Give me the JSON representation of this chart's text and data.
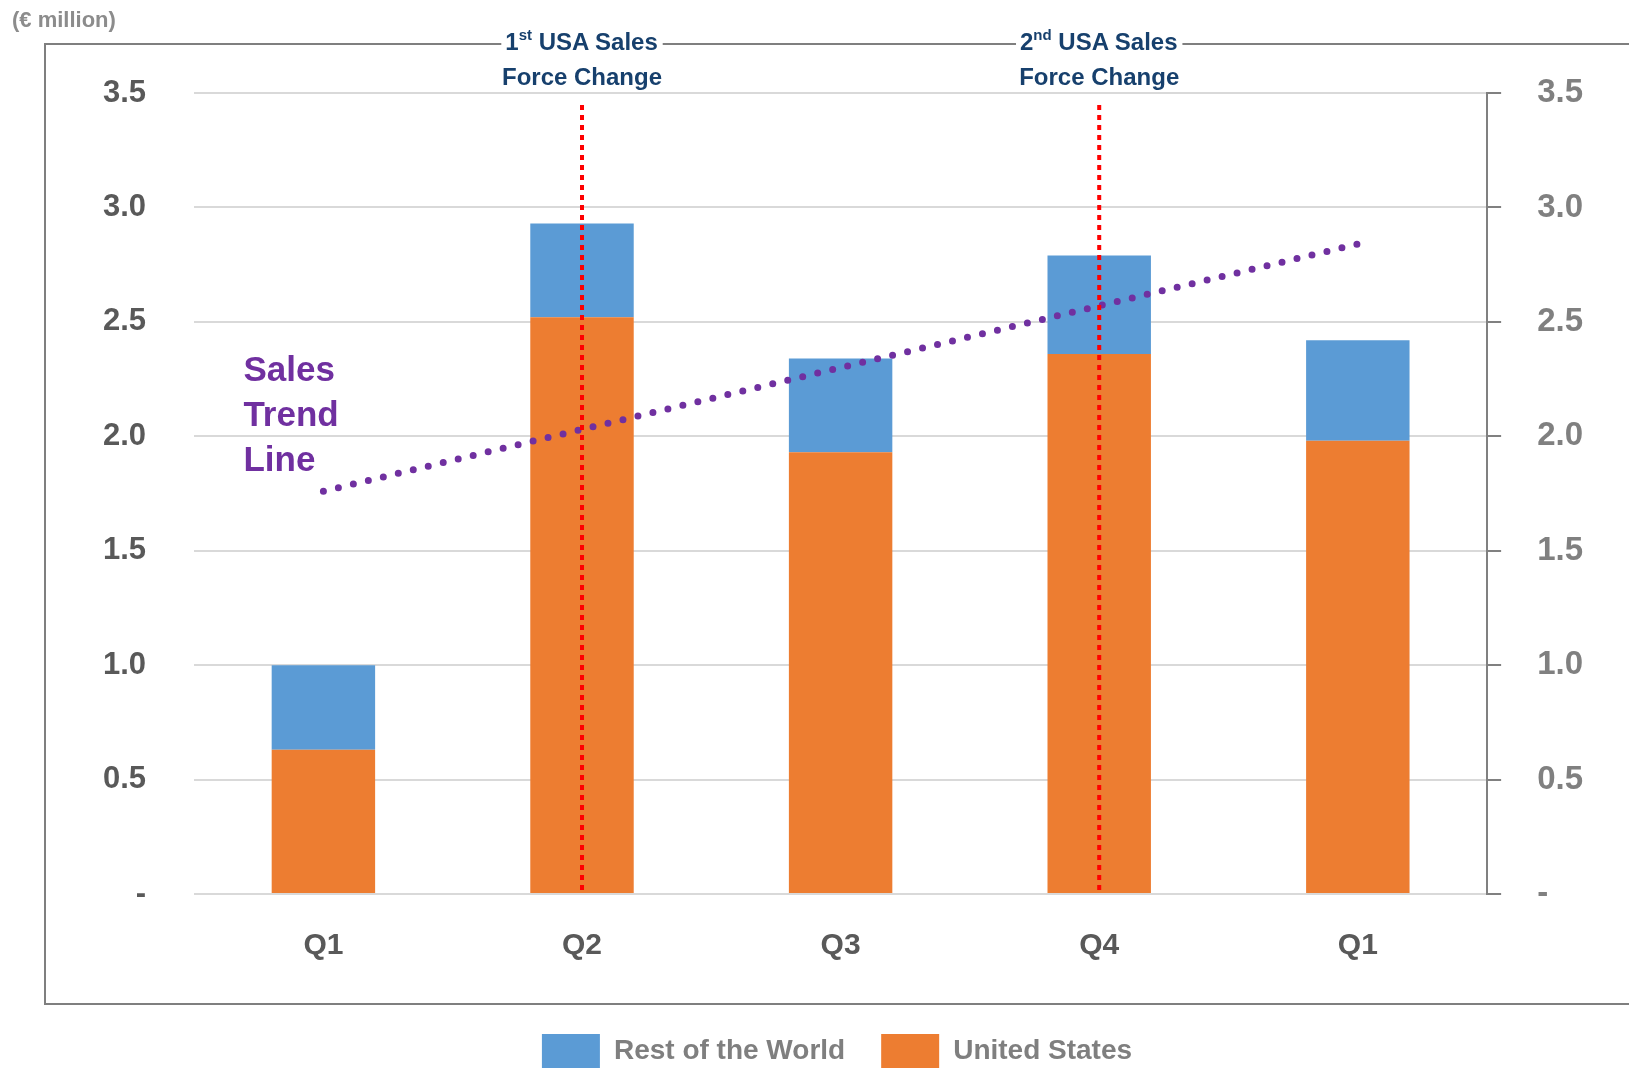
{
  "chart_data": {
    "type": "bar",
    "stacked": true,
    "categories": [
      "Q1",
      "Q2",
      "Q3",
      "Q4",
      "Q1"
    ],
    "series": [
      {
        "name": "United States",
        "color": "#ed7d31",
        "values": [
          0.63,
          2.52,
          1.93,
          2.36,
          1.98
        ]
      },
      {
        "name": "Rest of the World",
        "color": "#5b9bd5",
        "values": [
          0.37,
          0.41,
          0.41,
          0.43,
          0.44
        ]
      },
      {
        "name": "Sales Trend Line",
        "type": "line",
        "color": "#7030a0",
        "line_style": "dotted",
        "marker": "none",
        "values": [
          1.76,
          2.03,
          2.3,
          2.57,
          2.84
        ]
      }
    ],
    "ylim": [
      0,
      3.5
    ],
    "yticks": [
      {
        "value": 0,
        "label": "-"
      },
      0.5,
      {
        "value": 1,
        "label": "1.0"
      },
      1.5,
      {
        "value": 2,
        "label": "2.0"
      },
      2.5,
      {
        "value": 3,
        "label": "3.0"
      },
      3.5
    ],
    "y2lim": [
      0,
      3.5
    ],
    "y2ticks": [
      {
        "value": 0,
        "label": "-"
      },
      0.5,
      {
        "value": 1,
        "label": "1.0"
      },
      1.5,
      {
        "value": 2,
        "label": "2.0"
      },
      2.5,
      {
        "value": 3,
        "label": "3.0"
      },
      3.5
    ],
    "ref_lines": [
      {
        "axis": "x",
        "value": "Q2",
        "label": "1$^{st}$ USA Sales Force Change",
        "color": "#ff0000",
        "line_style": "dotted"
      },
      {
        "axis": "x",
        "value": "Q4",
        "label": "2$^{nd}$ USA Sales Force Change",
        "color": "#ff0000",
        "line_style": "dotted"
      }
    ],
    "annotations": [
      "(€ million)"
    ],
    "grid": "y",
    "legend": "bottom"
  }
}
